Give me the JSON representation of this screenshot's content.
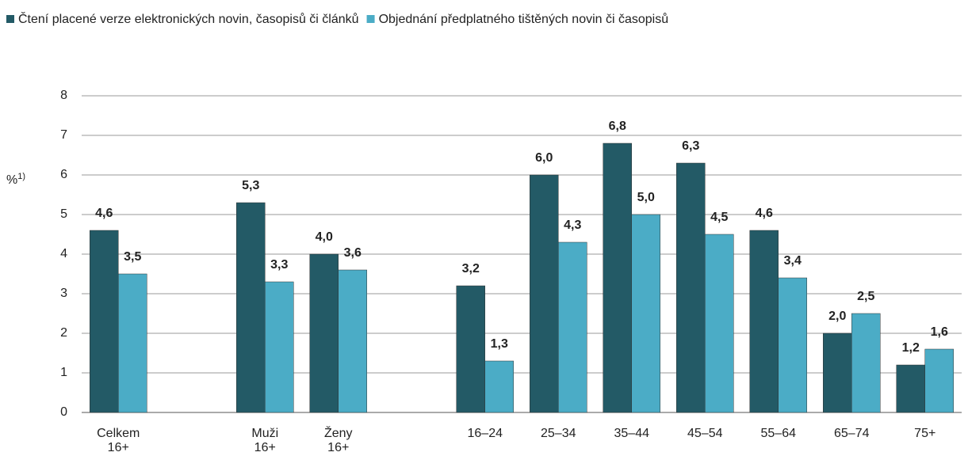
{
  "chart_data": {
    "type": "bar",
    "y_label": "%",
    "y_label_note": "1)",
    "categories": [
      "Celkem\n16+",
      null,
      "Muži\n16+",
      "Ženy\n16+",
      null,
      "16–24",
      "25–34",
      "35–44",
      "45–54",
      "55–64",
      "65–74",
      "75+"
    ],
    "series": [
      {
        "name": "Čtení placené verze elektronických novin, časopisů či článků",
        "color": "#235a66",
        "values": [
          4.6,
          null,
          5.3,
          4.0,
          null,
          3.2,
          6.0,
          6.8,
          6.3,
          4.6,
          2.0,
          1.2
        ],
        "value_labels": [
          "4,6",
          null,
          "5,3",
          "4,0",
          null,
          "3,2",
          "6,0",
          "6,8",
          "6,3",
          "4,6",
          "2,0",
          "1,2"
        ]
      },
      {
        "name": "Objednání předplatného tištěných novin či časopisů",
        "color": "#4bacc6",
        "values": [
          3.5,
          null,
          3.3,
          3.6,
          null,
          1.3,
          4.3,
          5.0,
          4.5,
          3.4,
          2.5,
          1.6
        ],
        "value_labels": [
          "3,5",
          null,
          "3,3",
          "3,6",
          null,
          "1,3",
          "4,3",
          "5,0",
          "4,5",
          "3,4",
          "2,5",
          "1,6"
        ]
      }
    ],
    "ylim": [
      0,
      8
    ],
    "yticks": [
      0,
      1,
      2,
      3,
      4,
      5,
      6,
      7,
      8
    ],
    "grid": true,
    "legend": "top"
  }
}
